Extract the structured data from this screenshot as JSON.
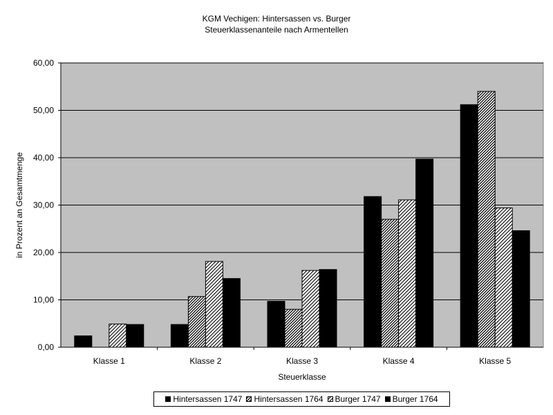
{
  "chart_data": {
    "type": "bar",
    "title": "KGM Vechigen: Hintersassen vs. Burger",
    "subtitle": "Steuerklassenanteile nach Armentellen",
    "xlabel": "Steuerklasse",
    "ylabel": "in Prozent an Gesamtmenge",
    "ylim": [
      0,
      60
    ],
    "yticks": [
      "0,00",
      "10,00",
      "20,00",
      "30,00",
      "40,00",
      "50,00",
      "60,00"
    ],
    "grid": true,
    "plot_background": "#c0c0c0",
    "legend_placement": "bottom",
    "categories": [
      "Klasse 1",
      "Klasse 2",
      "Klasse 3",
      "Klasse 4",
      "Klasse 5"
    ],
    "series": [
      {
        "name": "Hintersassen 1747",
        "pattern": "solid",
        "color": "#000000",
        "values": [
          2.4,
          4.8,
          9.7,
          31.8,
          51.2
        ]
      },
      {
        "name": "Hintersassen 1764",
        "pattern": "hatch-dense",
        "color": "#000000",
        "values": [
          0.0,
          10.7,
          8.0,
          27.0,
          54.0
        ]
      },
      {
        "name": "Burger 1747",
        "pattern": "hatch",
        "color": "#000000",
        "values": [
          4.9,
          18.1,
          16.2,
          31.1,
          29.4
        ]
      },
      {
        "name": "Burger 1764",
        "pattern": "solid",
        "color": "#000000",
        "values": [
          4.8,
          14.5,
          16.4,
          39.7,
          24.6
        ]
      }
    ]
  }
}
